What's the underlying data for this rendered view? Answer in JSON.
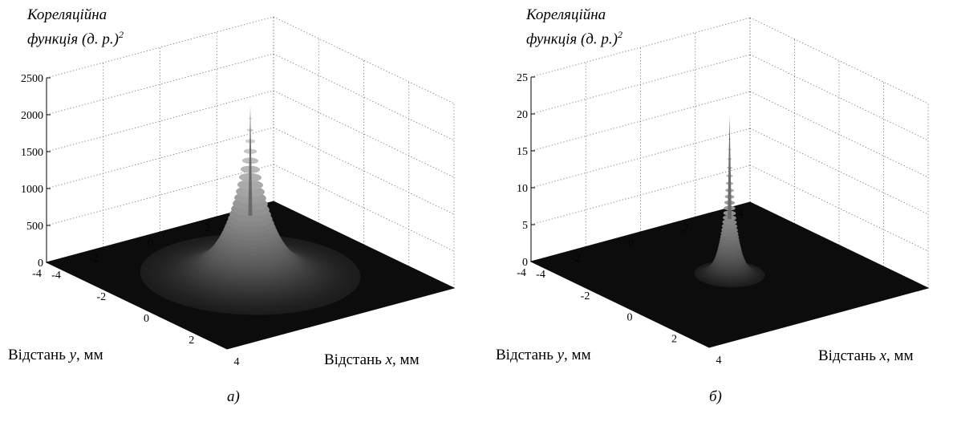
{
  "chart_data": [
    {
      "type": "surface",
      "caption": "а)",
      "zlabel_line1": "Кореляційна",
      "zlabel_line2": "функція (д. р.)",
      "zlabel_sup": "2",
      "xlabel_text": "Відстань ",
      "xlabel_var": "x",
      "xlabel_unit": ", мм",
      "ylabel_text": "Відстань ",
      "ylabel_var": "y",
      "ylabel_unit": ", мм",
      "xlim": [
        -4,
        4
      ],
      "ylim": [
        -4,
        4
      ],
      "zlim": [
        0,
        2500
      ],
      "xticks": [
        -4,
        -2,
        0,
        2,
        4
      ],
      "yticks": [
        -4,
        -2,
        0,
        2,
        4
      ],
      "zticks": [
        0,
        500,
        1000,
        1500,
        2000,
        2500
      ],
      "peak": {
        "x": 0,
        "y": 0,
        "z": 2300
      },
      "decay_length_mm": 0.55,
      "grid": true,
      "colormap": "gray"
    },
    {
      "type": "surface",
      "caption": "б)",
      "zlabel_line1": "Кореляційна",
      "zlabel_line2": "функція (д. р.)",
      "zlabel_sup": "2",
      "xlabel_text": "Відстань ",
      "xlabel_var": "x",
      "xlabel_unit": ", мм",
      "ylabel_text": "Відстань ",
      "ylabel_var": "y",
      "ylabel_unit": ", мм",
      "xlim": [
        -4,
        4
      ],
      "ylim": [
        -4,
        4
      ],
      "zlim": [
        0,
        25
      ],
      "xticks": [
        -4,
        -2,
        0,
        2,
        4
      ],
      "yticks": [
        -4,
        -2,
        0,
        2,
        4
      ],
      "zticks": [
        0,
        5,
        10,
        15,
        20,
        25
      ],
      "peak": {
        "x": 0,
        "y": 0,
        "z": 21.5
      },
      "decay_length_mm": 0.18,
      "grid": true,
      "colormap": "gray"
    }
  ]
}
